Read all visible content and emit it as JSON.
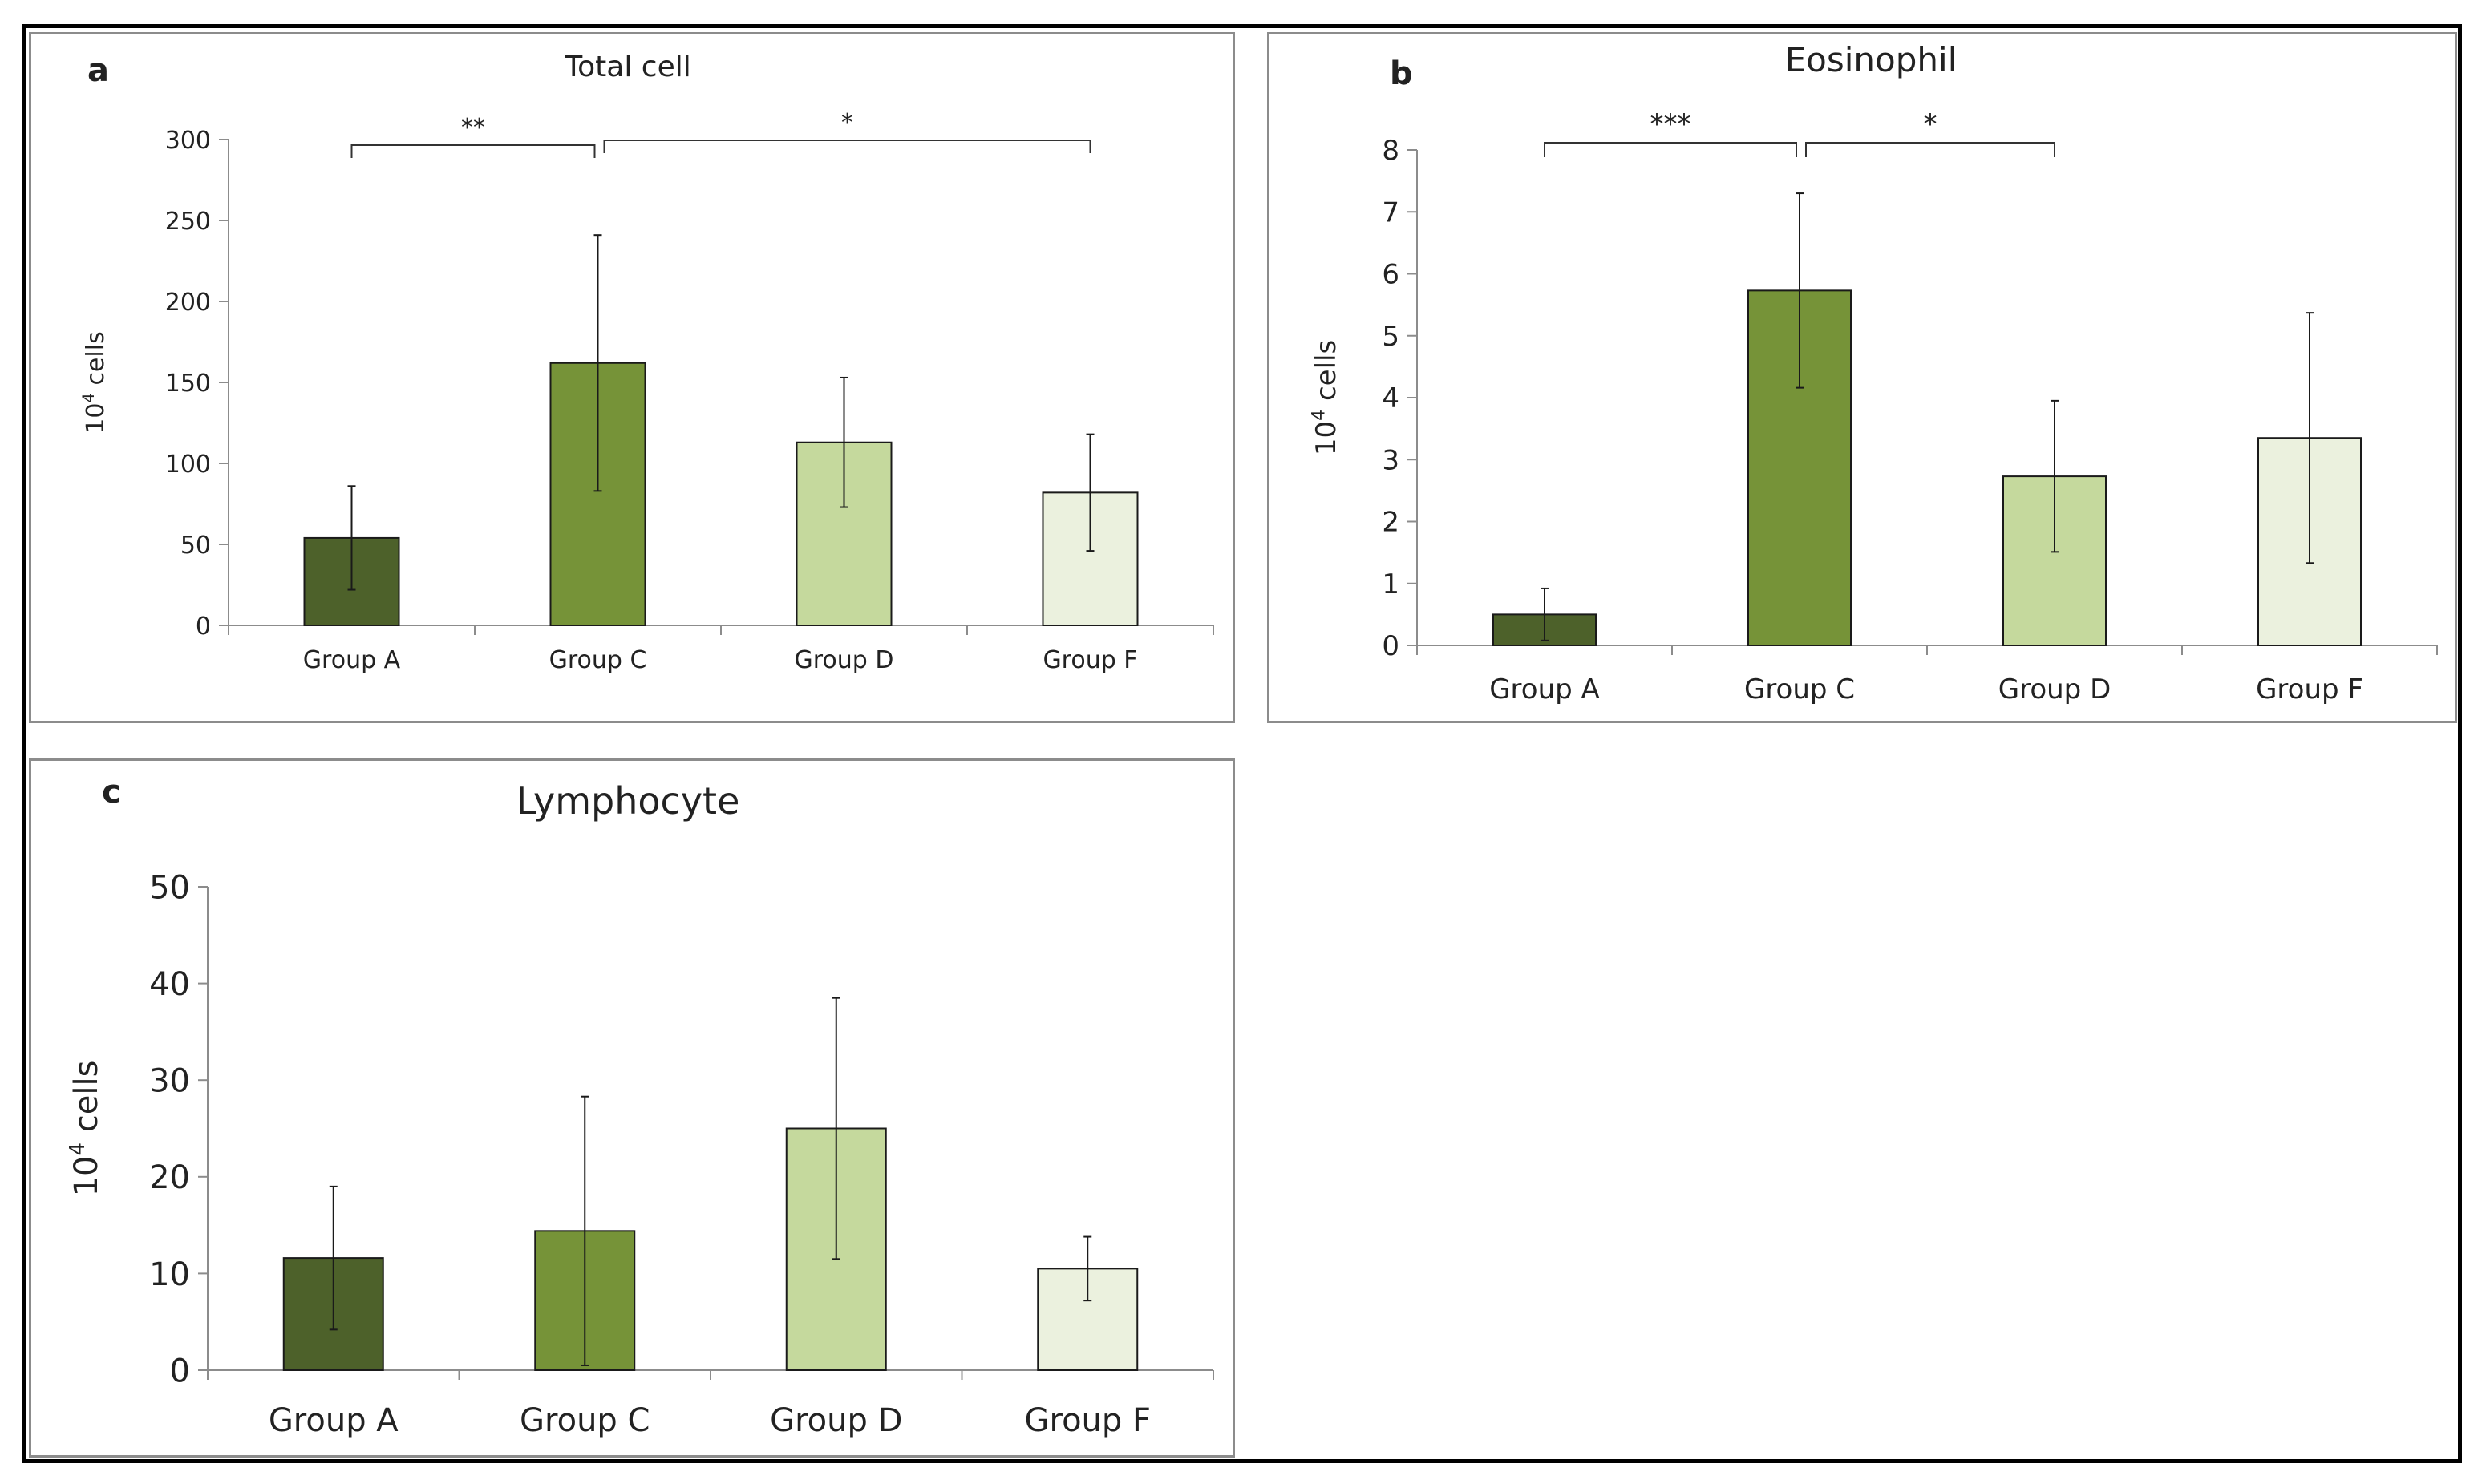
{
  "colors": {
    "group_a": "#4d612a",
    "group_c": "#769338",
    "group_d": "#c5d99d",
    "group_f": "#ebf1de",
    "frame": "#000000",
    "panel_border": "#8c8c8c",
    "axis": "#8c8c8c"
  },
  "chart_data": [
    {
      "panel_label": "a",
      "type": "bar",
      "title": "Total cell",
      "ylabel_base": "10",
      "ylabel_exp": "4",
      "ylabel_unit": "cells",
      "categories": [
        "Group A",
        "Group C",
        "Group D",
        "Group F"
      ],
      "values": [
        54,
        162,
        113,
        82
      ],
      "errors": [
        32,
        79,
        40,
        36
      ],
      "ylim": [
        0,
        300
      ],
      "yticks": [
        0,
        50,
        100,
        150,
        200,
        250,
        300
      ],
      "significance": [
        {
          "from": 0,
          "to": 1,
          "label": "**"
        },
        {
          "from": 1,
          "to": 3,
          "label": "*"
        }
      ]
    },
    {
      "panel_label": "b",
      "type": "bar",
      "title": "Eosinophil",
      "ylabel_base": "10",
      "ylabel_exp": "4",
      "ylabel_unit": "cells",
      "categories": [
        "Group A",
        "Group C",
        "Group D",
        "Group F"
      ],
      "values": [
        0.5,
        5.73,
        2.73,
        3.35
      ],
      "errors": [
        0.42,
        1.57,
        1.22,
        2.02
      ],
      "ylim": [
        0,
        8
      ],
      "yticks": [
        0,
        1,
        2,
        3,
        4,
        5,
        6,
        7,
        8
      ],
      "significance": [
        {
          "from": 0,
          "to": 1,
          "label": "***"
        },
        {
          "from": 1,
          "to": 2,
          "label": "*"
        }
      ]
    },
    {
      "panel_label": "c",
      "type": "bar",
      "title": "Lymphocyte",
      "ylabel_base": "10",
      "ylabel_exp": "4",
      "ylabel_unit": "cells",
      "categories": [
        "Group A",
        "Group C",
        "Group D",
        "Group F"
      ],
      "values": [
        11.6,
        14.4,
        25.0,
        10.5
      ],
      "errors": [
        7.4,
        13.9,
        13.5,
        3.3
      ],
      "ylim": [
        0,
        50
      ],
      "yticks": [
        0,
        10,
        20,
        30,
        40,
        50
      ],
      "significance": []
    }
  ]
}
